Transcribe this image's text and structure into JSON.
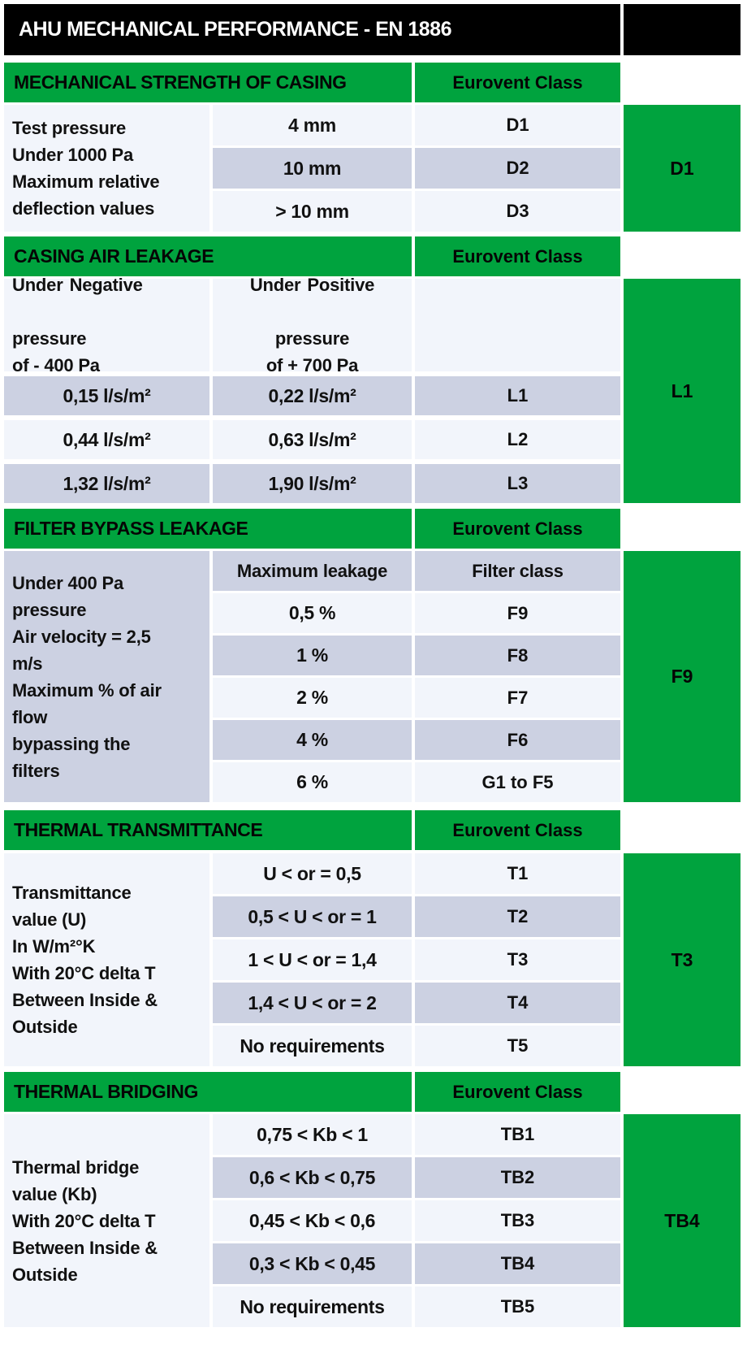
{
  "title": "AHU MECHANICAL PERFORMANCE  - EN 1886",
  "colors": {
    "green": "#00a33e",
    "black": "#000000",
    "row_light": "#f2f5fb",
    "row_gray": "#ccd1e2"
  },
  "s1": {
    "header": "MECHANICAL STRENGTH OF CASING",
    "class_col": "Eurovent Class",
    "label": "Test pressure\nUnder 1000 Pa\nMaximum relative\ndeflection values",
    "rows": [
      {
        "v": "4 mm",
        "c": "D1"
      },
      {
        "v": "10 mm",
        "c": "D2"
      },
      {
        "v": "> 10 mm",
        "c": "D3"
      }
    ],
    "result": "D1"
  },
  "s2": {
    "header": "CASING AIR LEAKAGE",
    "class_col": "Eurovent Class",
    "neg": {
      "word1": "Under",
      "word2": "Negative",
      "rest": "pressure\nof - 400 Pa"
    },
    "pos": {
      "word1": "Under",
      "word2": "Positive",
      "rest": "pressure\nof + 700 Pa"
    },
    "rows": [
      {
        "n": "0,15 l/s/m²",
        "p": "0,22 l/s/m²",
        "c": "L1"
      },
      {
        "n": "0,44 l/s/m²",
        "p": "0,63 l/s/m²",
        "c": "L2"
      },
      {
        "n": "1,32 l/s/m²",
        "p": "1,90 l/s/m²",
        "c": "L3"
      }
    ],
    "result": "L1"
  },
  "s3": {
    "header": "FILTER BYPASS LEAKAGE",
    "class_col": "Eurovent Class",
    "label": "Under 400 Pa\npressure\nAir velocity = 2,5\nm/s\nMaximum % of air\nflow\nbypassing the\nfilters",
    "rows": [
      {
        "v": "Maximum leakage",
        "c": "Filter class"
      },
      {
        "v": "0,5 %",
        "c": "F9"
      },
      {
        "v": "1 %",
        "c": "F8"
      },
      {
        "v": "2 %",
        "c": "F7"
      },
      {
        "v": "4 %",
        "c": "F6"
      },
      {
        "v": "6 %",
        "c": "G1 to F5"
      }
    ],
    "result": "F9"
  },
  "s4": {
    "header": "THERMAL TRANSMITTANCE",
    "class_col": "Eurovent Class",
    "label": "Transmittance\nvalue (U)\nIn W/m²°K\nWith 20°C delta T\nBetween Inside &\nOutside",
    "rows": [
      {
        "v": "U < or = 0,5",
        "c": "T1"
      },
      {
        "v": "0,5 < U < or = 1",
        "c": "T2"
      },
      {
        "v": "1 < U < or = 1,4",
        "c": "T3"
      },
      {
        "v": "1,4 < U < or = 2",
        "c": "T4"
      },
      {
        "v": "No requirements",
        "c": "T5"
      }
    ],
    "result": "T3"
  },
  "s5": {
    "header": "THERMAL BRIDGING",
    "class_col": "Eurovent Class",
    "label": "Thermal bridge\nvalue (Kb)\nWith 20°C delta T\nBetween Inside &\nOutside",
    "rows": [
      {
        "v": "0,75 < Kb < 1",
        "c": "TB1"
      },
      {
        "v": "0,6 < Kb < 0,75",
        "c": "TB2"
      },
      {
        "v": "0,45 < Kb < 0,6",
        "c": "TB3"
      },
      {
        "v": "0,3 < Kb < 0,45",
        "c": "TB4"
      },
      {
        "v": "No requirements",
        "c": "TB5"
      }
    ],
    "result": "TB4"
  }
}
